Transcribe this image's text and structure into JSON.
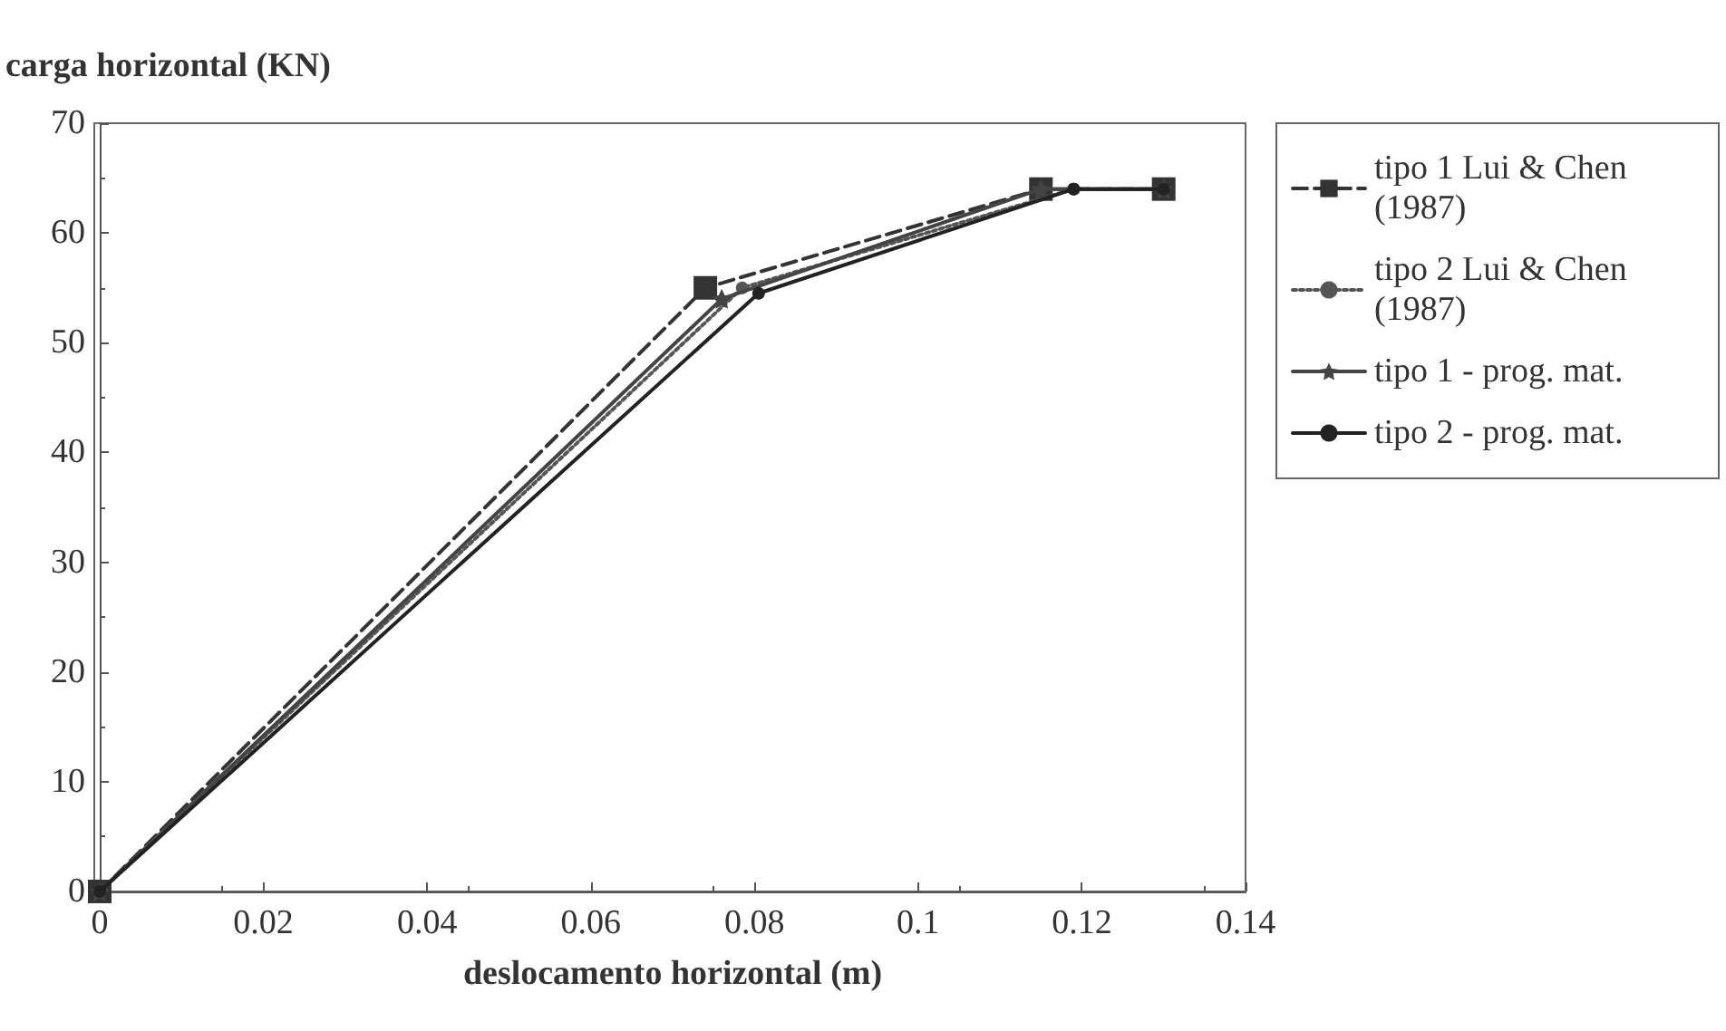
{
  "chart_data": {
    "type": "line",
    "ylabel": "carga horizontal (KN)",
    "xlabel": "deslocamento horizontal (m)",
    "xlim": [
      0,
      0.14
    ],
    "xticks": [
      0,
      0.02,
      0.04,
      0.06,
      0.08,
      0.1,
      0.12,
      0.14
    ],
    "ylim": [
      0,
      70
    ],
    "yticks": [
      0,
      10,
      20,
      30,
      40,
      50,
      60,
      70
    ],
    "grid": false,
    "legend": "right",
    "series": [
      {
        "name": "tipo 1 Lui & Chen (1987)",
        "color": "#333333",
        "marker": "square",
        "line_style": "dashed",
        "x": [
          0,
          0.074,
          0.115,
          0.13
        ],
        "values": [
          0,
          55,
          64,
          64
        ]
      },
      {
        "name": "tipo 2 Lui & Chen (1987)",
        "color": "#555555",
        "marker": "circle",
        "line_style": "dotted",
        "x": [
          0,
          0.0785,
          0.119,
          0.13
        ],
        "values": [
          0,
          55,
          64,
          64
        ]
      },
      {
        "name": "tipo 1 - prog. mat.",
        "color": "#444444",
        "marker": "star",
        "line_style": "solid",
        "x": [
          0,
          0.076,
          0.115,
          0.13
        ],
        "values": [
          0,
          54,
          64,
          64
        ]
      },
      {
        "name": "tipo 2 - prog. mat.",
        "color": "#222222",
        "marker": "circle",
        "line_style": "solid",
        "x": [
          0,
          0.0805,
          0.119,
          0.13
        ],
        "values": [
          0,
          54.5,
          64,
          64
        ]
      }
    ]
  }
}
